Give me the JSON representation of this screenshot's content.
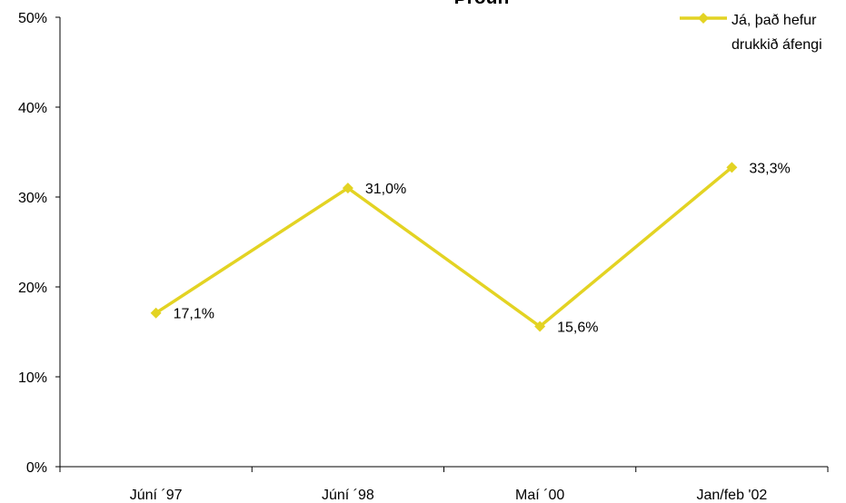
{
  "chart_data": {
    "type": "line",
    "title": "Þróun",
    "categories": [
      "Júní ´97",
      "Júní ´98",
      "Maí ´00",
      "Jan/feb '02"
    ],
    "series": [
      {
        "name": "Já, það hefur drukkið áfengi",
        "color": "#e3d323",
        "values": [
          17.1,
          31.0,
          15.6,
          33.3
        ],
        "value_labels": [
          "17,1%",
          "31,0%",
          "15,6%",
          "33,3%"
        ]
      }
    ],
    "ylim": [
      0,
      50
    ],
    "yticks": [
      {
        "value": 0,
        "label": "0%"
      },
      {
        "value": 10,
        "label": "10%"
      },
      {
        "value": 20,
        "label": "20%"
      },
      {
        "value": 30,
        "label": "30%"
      },
      {
        "value": 40,
        "label": "40%"
      },
      {
        "value": 50,
        "label": "50%"
      }
    ],
    "legend": "top-right",
    "grid": false
  }
}
